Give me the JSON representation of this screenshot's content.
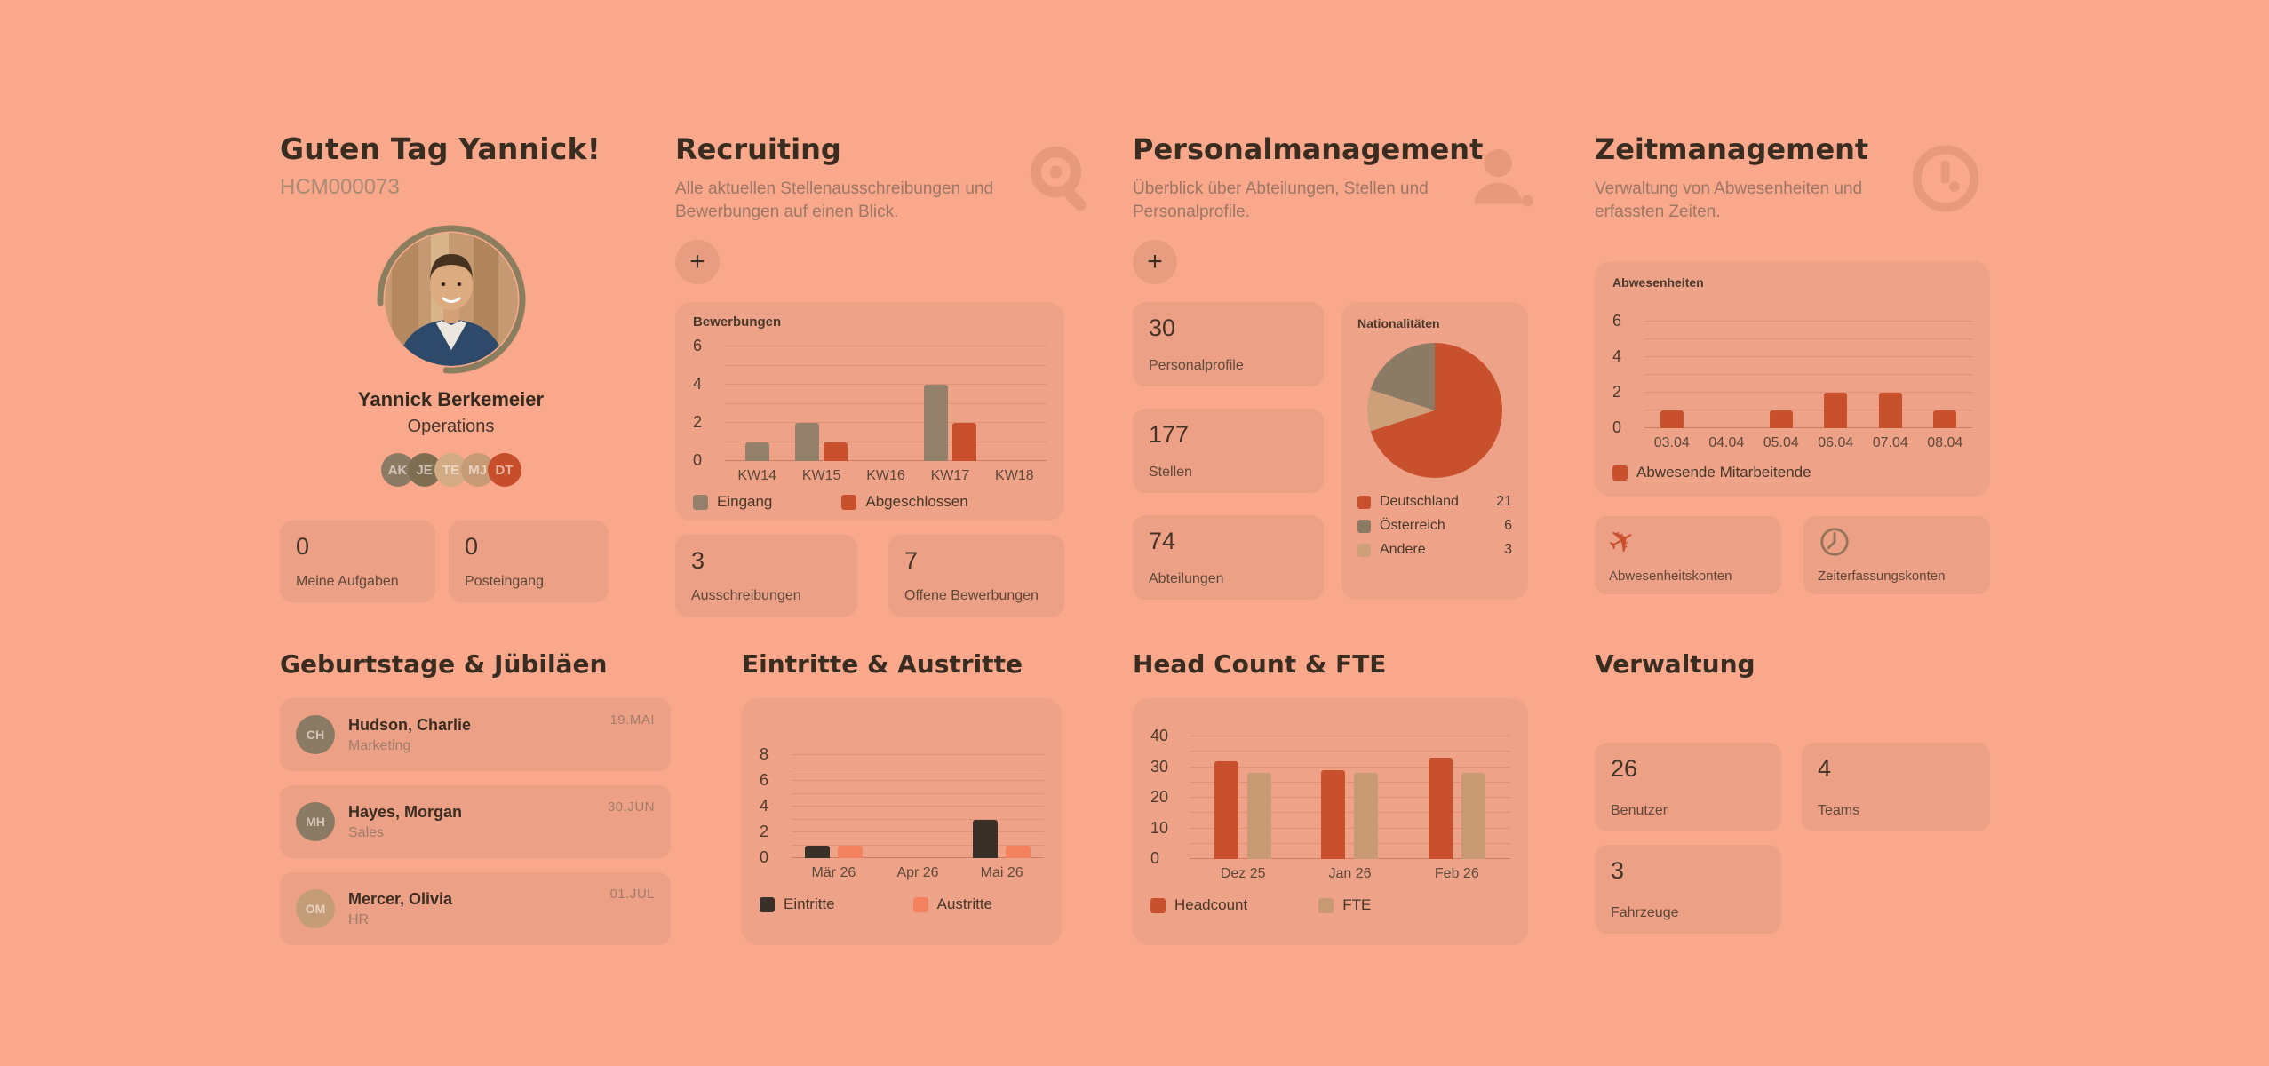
{
  "colors": {
    "background": "#f9a88b",
    "card": "#eca086",
    "accent_red": "#c8502d",
    "olive": "#94816b",
    "tan": "#c89a74",
    "dark": "#39302a",
    "salmon_bar": "#f5825f",
    "heading": "#392d21"
  },
  "profile": {
    "greeting": "Guten Tag Yannick!",
    "employee_id": "HCM000073",
    "name": "Yannick Berkemeier",
    "department": "Operations",
    "team_badges": [
      {
        "initials": "AK",
        "color": "#8c7b64"
      },
      {
        "initials": "JE",
        "color": "#7f6d52"
      },
      {
        "initials": "TE",
        "color": "#d2ab85"
      },
      {
        "initials": "MJ",
        "color": "#c59a74"
      },
      {
        "initials": "DT",
        "color": "#c64e2a"
      }
    ],
    "stats": [
      {
        "value": "0",
        "label": "Meine Aufgaben"
      },
      {
        "value": "0",
        "label": "Posteingang"
      }
    ]
  },
  "sections": {
    "recruiting": {
      "title": "Recruiting",
      "subtitle": "Alle aktuellen Stellenausschreibungen und Bewerbungen auf einen Blick.",
      "icon": "search-icon",
      "add_label": "+",
      "stats": [
        {
          "value": "3",
          "label": "Ausschreibungen"
        },
        {
          "value": "7",
          "label": "Offene Bewerbungen"
        }
      ]
    },
    "personalmanagement": {
      "title": "Personalmanagement",
      "subtitle": "Überblick über Abteilungen, Stellen und Personalprofile.",
      "icon": "user-icon",
      "add_label": "+",
      "stats": [
        {
          "value": "30",
          "label": "Personalprofile"
        },
        {
          "value": "177",
          "label": "Stellen"
        },
        {
          "value": "74",
          "label": "Abteilungen"
        }
      ]
    },
    "zeitmanagement": {
      "title": "Zeitmanagement",
      "subtitle": "Verwaltung von Abwesenheiten und erfassten Zeiten.",
      "icon": "clock-icon",
      "links": [
        {
          "label": "Abwesenheitskonten",
          "icon": "airplane-icon"
        },
        {
          "label": "Zeiterfassungskonten",
          "icon": "clock-icon"
        }
      ]
    },
    "birthdays": {
      "title": "Geburtstage & Jübiläen",
      "items": [
        {
          "initials": "CH",
          "color": "#8c7b64",
          "name": "Hudson, Charlie",
          "department": "Marketing",
          "date": "19.MAI"
        },
        {
          "initials": "MH",
          "color": "#8c7b64",
          "name": "Hayes, Morgan",
          "department": "Sales",
          "date": "30.JUN"
        },
        {
          "initials": "OM",
          "color": "#c49c77",
          "name": "Mercer, Olivia",
          "department": "HR",
          "date": "01.JUL"
        }
      ]
    },
    "eintritte": {
      "title": "Eintritte & Austritte"
    },
    "headcount": {
      "title": "Head Count & FTE"
    },
    "verwaltung": {
      "title": "Verwaltung",
      "stats": [
        {
          "value": "26",
          "label": "Benutzer"
        },
        {
          "value": "4",
          "label": "Teams"
        },
        {
          "value": "3",
          "label": "Fahrzeuge"
        }
      ]
    }
  },
  "chart_data": [
    {
      "id": "bewerbungen",
      "type": "bar",
      "title": "Bewerbungen",
      "categories": [
        "KW14",
        "KW15",
        "KW16",
        "KW17",
        "KW18"
      ],
      "series": [
        {
          "name": "Eingang",
          "color": "#94816b",
          "values": [
            1,
            2,
            0,
            4,
            0
          ]
        },
        {
          "name": "Abgeschlossen",
          "color": "#c8502d",
          "values": [
            0,
            1,
            0,
            2,
            0
          ]
        }
      ],
      "ylim": [
        0,
        6
      ],
      "ytick_step": 2,
      "grid_step": 1,
      "legend_position": "bottom",
      "grid": true
    },
    {
      "id": "abwesenheiten",
      "type": "bar",
      "title": "Abwesenheiten",
      "categories": [
        "03.04",
        "04.04",
        "05.04",
        "06.04",
        "07.04",
        "08.04"
      ],
      "series": [
        {
          "name": "Abwesende Mitarbeitende",
          "color": "#c8502d",
          "values": [
            1,
            0,
            1,
            2,
            2,
            1
          ]
        }
      ],
      "ylim": [
        0,
        6
      ],
      "ytick_step": 2,
      "grid_step": 1,
      "legend_position": "bottom",
      "grid": true
    },
    {
      "id": "nationalitaeten",
      "type": "pie",
      "title": "Nationalitäten",
      "slices": [
        {
          "label": "Deutschland",
          "value": 21,
          "color": "#c8502d"
        },
        {
          "label": "Österreich",
          "value": 6,
          "color": "#8c7b64"
        },
        {
          "label": "Andere",
          "value": 3,
          "color": "#cda07a"
        }
      ],
      "legend_position": "bottom"
    },
    {
      "id": "eintritte_austritte",
      "type": "bar",
      "title": "Eintritte & Austritte",
      "categories": [
        "Mär 26",
        "Apr 26",
        "Mai 26"
      ],
      "series": [
        {
          "name": "Eintritte",
          "color": "#39302a",
          "values": [
            1,
            0,
            3
          ]
        },
        {
          "name": "Austritte",
          "color": "#f5825f",
          "values": [
            1,
            0,
            1
          ]
        }
      ],
      "ylim": [
        0,
        8
      ],
      "ytick_step": 2,
      "grid_step": 1,
      "legend_position": "bottom",
      "grid": true
    },
    {
      "id": "headcount_fte",
      "type": "bar",
      "title": "Head Count & FTE",
      "categories": [
        "Dez 25",
        "Jan 26",
        "Feb 26"
      ],
      "series": [
        {
          "name": "Headcount",
          "color": "#c8502d",
          "values": [
            32,
            29,
            33
          ]
        },
        {
          "name": "FTE",
          "color": "#c89a74",
          "values": [
            28,
            28,
            28
          ]
        }
      ],
      "ylim": [
        0,
        40
      ],
      "ytick_step": 10,
      "grid_step": 5,
      "legend_position": "bottom",
      "grid": true
    }
  ]
}
